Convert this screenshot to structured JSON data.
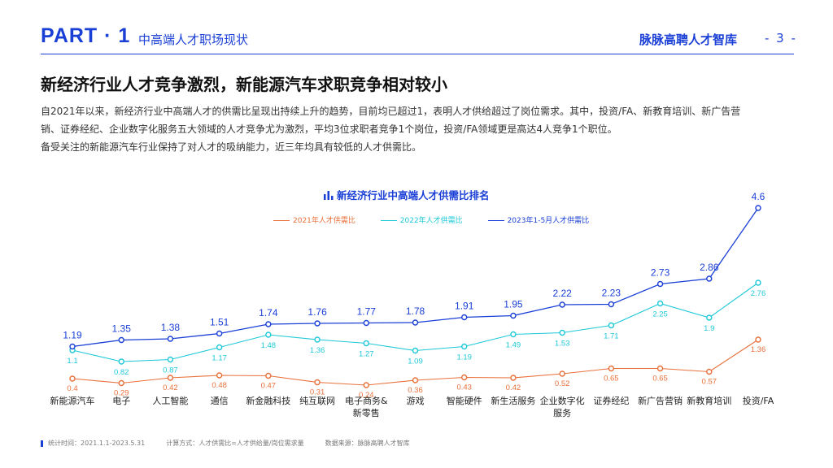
{
  "header": {
    "part": "PART · 1",
    "section": "中高端人才职场现状",
    "brand": "脉脉高聘人才智库",
    "page": "- 3 -"
  },
  "headline": "新经济行业人才竞争激烈，新能源汽车求职竞争相对较小",
  "description": [
    "自2021年以来，新经济行业中高端人才的供需比呈现出持续上升的趋势，目前均已超过1，表明人才供给超过了岗位需求。其中，投资/FA、新教育培训、新广告营",
    "销、证券经纪、企业数字化服务五大领域的人才竞争尤为激烈，平均3位求职者竞争1个岗位，投资/FA领域更是高达4人竞争1个职位。",
    "备受关注的新能源汽车行业保持了对人才的吸纳能力，近三年均具有较低的人才供需比。"
  ],
  "footer": {
    "period": "统计时间：2021.1.1-2023.5.31",
    "method": "计算方式：人才供需比=人才供给量/岗位需求量",
    "source": "数据来源：脉脉高聘人才智库"
  },
  "chart_data": {
    "type": "line",
    "title": "新经济行业中高端人才供需比排名",
    "categories": [
      "新能源汽车",
      "电子",
      "人工智能",
      "通信",
      "新金融科技",
      "纯互联网",
      "电子商务&新零售",
      "游戏",
      "智能硬件",
      "新生活服务",
      "企业数字化服务",
      "证券经纪",
      "新广告营销",
      "新教育培训",
      "投资/FA"
    ],
    "series": [
      {
        "name": "2021年人才供需比",
        "color": "#e8703a",
        "values": [
          0.4,
          0.29,
          0.42,
          0.48,
          0.47,
          0.31,
          0.24,
          0.36,
          0.43,
          0.42,
          0.52,
          0.65,
          0.65,
          0.57,
          1.36
        ]
      },
      {
        "name": "2022年人才供需比",
        "color": "#1ec8d8",
        "values": [
          1.1,
          0.82,
          0.87,
          1.17,
          1.48,
          1.36,
          1.27,
          1.09,
          1.19,
          1.49,
          1.53,
          1.71,
          2.25,
          1.9,
          2.76
        ]
      },
      {
        "name": "2023年1-5月人才供需比",
        "color": "#1a3fd6",
        "values": [
          1.19,
          1.35,
          1.38,
          1.51,
          1.74,
          1.76,
          1.77,
          1.78,
          1.91,
          1.95,
          2.22,
          2.23,
          2.73,
          2.86,
          4.6
        ]
      }
    ],
    "ylim": [
      0,
      4.8
    ],
    "grid": false,
    "legend": "top-center"
  }
}
